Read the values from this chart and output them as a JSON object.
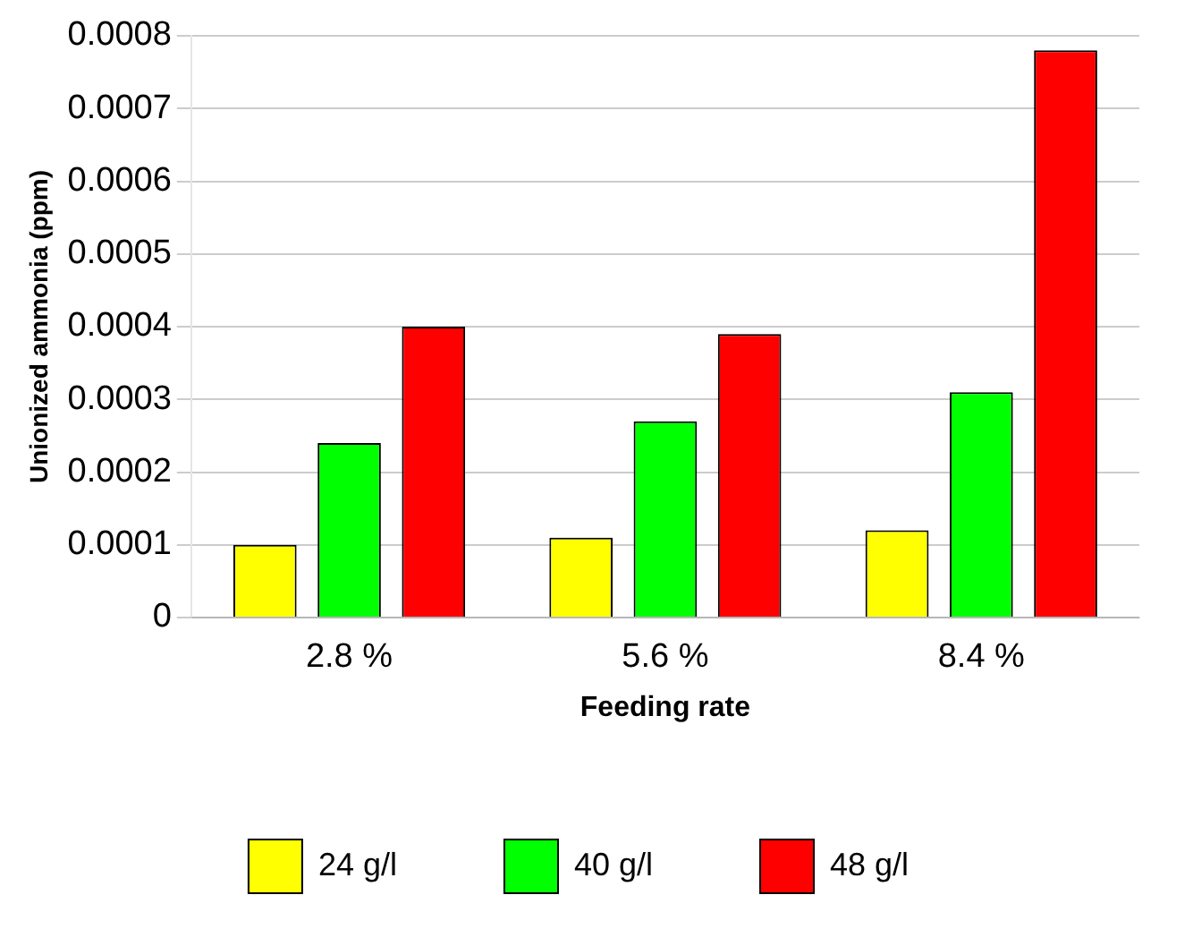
{
  "chart_data": {
    "type": "bar",
    "xlabel": "Feeding rate",
    "ylabel": "Unionized ammonia (ppm)",
    "categories": [
      "2.8 %",
      "5.6 %",
      "8.4 %"
    ],
    "series": [
      {
        "name": "24 g/l",
        "color": "#ffff00",
        "values": [
          0.0001,
          0.00011,
          0.00012
        ]
      },
      {
        "name": "40 g/l",
        "color": "#00ff00",
        "values": [
          0.00024,
          0.00027,
          0.00031
        ]
      },
      {
        "name": "48 g/l",
        "color": "#ff0000",
        "values": [
          0.0004,
          0.00039,
          0.00078
        ]
      }
    ],
    "ylim": [
      0,
      0.0008
    ],
    "yticks": [
      0,
      0.0001,
      0.0002,
      0.0003,
      0.0004,
      0.0005,
      0.0006,
      0.0007,
      0.0008
    ],
    "grid": "y",
    "legend": "bottom"
  }
}
